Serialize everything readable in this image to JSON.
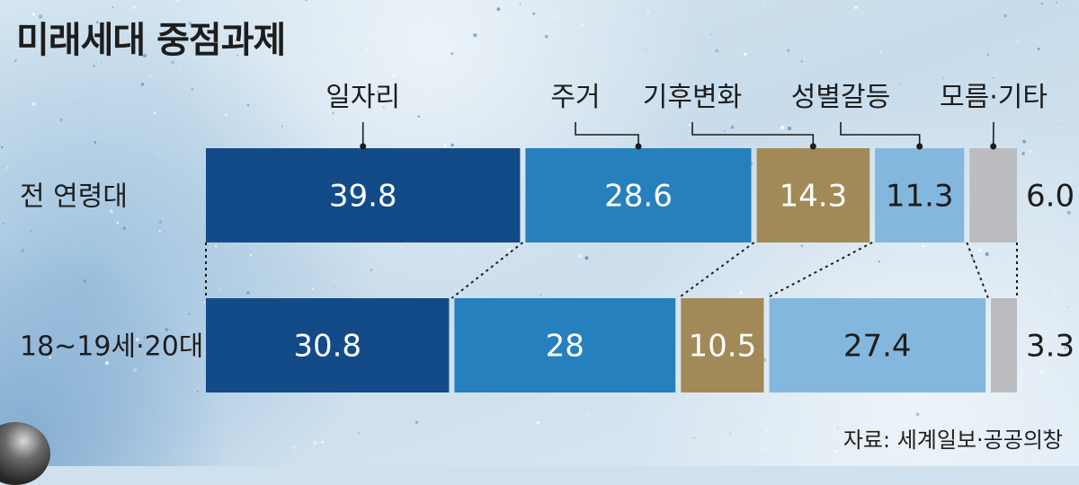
{
  "title": "미래세대 중점과제",
  "source": "자료: 세계일보·공공의창",
  "colors": {
    "jobs": "#124b88",
    "housing": "#2680bd",
    "climate": "#a28a58",
    "gender": "#84b7dd",
    "other": "#bbbcc0"
  },
  "chart_data": {
    "type": "bar",
    "stacked": true,
    "orientation": "horizontal",
    "categories": [
      "전 연령대",
      "18~19세·20대"
    ],
    "series": [
      {
        "name": "일자리",
        "values": [
          39.8,
          30.8
        ],
        "labels": [
          "39.8",
          "30.8"
        ],
        "color": "#124b88",
        "label_color": "#ffffff"
      },
      {
        "name": "주거",
        "values": [
          28.6,
          28
        ],
        "labels": [
          "28.6",
          "28"
        ],
        "color": "#2680bd",
        "label_color": "#ffffff"
      },
      {
        "name": "기후변화",
        "values": [
          14.3,
          10.5
        ],
        "labels": [
          "14.3",
          "10.5"
        ],
        "color": "#a28a58",
        "label_color": "#ffffff"
      },
      {
        "name": "성별갈등",
        "values": [
          11.3,
          27.4
        ],
        "labels": [
          "11.3",
          "27.4"
        ],
        "color": "#84b7dd",
        "label_color": "#1d1d1d"
      },
      {
        "name": "모름·기타",
        "values": [
          6.0,
          3.3
        ],
        "labels": [
          "6.0",
          "3.3"
        ],
        "color": "#bbbcc0",
        "label_color": "#1d1d1d",
        "label_outside": true
      }
    ],
    "xlim": [
      0,
      100
    ],
    "legend": "top",
    "grid": false
  }
}
